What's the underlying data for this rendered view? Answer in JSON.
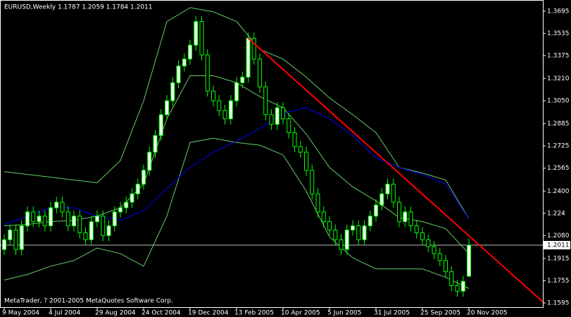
{
  "chart_data": {
    "type": "candlestick",
    "title": "EURUSD,Weekly  1.1787 1.2059 1.1784 1.2011",
    "footer": "MetaTrader, ? 2001-2005 MetaQuotes Software Corp.",
    "categories": [
      "9 May 2004",
      null,
      null,
      null,
      null,
      null,
      null,
      null,
      "4 Jul 2004",
      null,
      null,
      null,
      null,
      null,
      null,
      null,
      "29 Aug 2004",
      null,
      null,
      null,
      null,
      null,
      null,
      null,
      "24 Oct 2004",
      null,
      null,
      null,
      null,
      null,
      null,
      null,
      "19 Dec 2004",
      null,
      null,
      null,
      null,
      null,
      null,
      null,
      "13 Feb 2005",
      null,
      null,
      null,
      null,
      null,
      null,
      null,
      "10 Apr 2005",
      null,
      null,
      null,
      null,
      null,
      null,
      null,
      "5 Jun 2005",
      null,
      null,
      null,
      null,
      null,
      null,
      null,
      "31 Jul 2005",
      null,
      null,
      null,
      null,
      null,
      null,
      null,
      "25 Sep 2005",
      null,
      null,
      null,
      null,
      null,
      null,
      null,
      "20 Nov 2005"
    ],
    "open": [
      1.198,
      1.205,
      1.212,
      1.198,
      1.215,
      1.225,
      1.218,
      1.222,
      1.215,
      1.228,
      1.232,
      1.225,
      1.215,
      1.222,
      1.21,
      1.205,
      1.218,
      1.222,
      1.208,
      1.215,
      1.225,
      1.228,
      1.232,
      1.238,
      1.245,
      1.255,
      1.268,
      1.28,
      1.295,
      1.305,
      1.318,
      1.33,
      1.335,
      1.345,
      1.362,
      1.338,
      1.312,
      1.305,
      1.298,
      1.292,
      1.305,
      1.318,
      1.322,
      1.35,
      1.335,
      1.315,
      1.295,
      1.288,
      1.3,
      1.292,
      1.282,
      1.272,
      1.268,
      1.255,
      1.238,
      1.225,
      1.218,
      1.212,
      1.205,
      1.198,
      1.212,
      1.215,
      1.205,
      1.215,
      1.222,
      1.23,
      1.238,
      1.245,
      1.232,
      1.218,
      1.225,
      1.215,
      1.21,
      1.205,
      1.2,
      1.195,
      1.19,
      1.182,
      1.172,
      1.168,
      1.1787
    ],
    "high": [
      1.209,
      1.216,
      1.216,
      1.219,
      1.229,
      1.229,
      1.226,
      1.226,
      1.232,
      1.236,
      1.236,
      1.229,
      1.226,
      1.226,
      1.214,
      1.222,
      1.226,
      1.226,
      1.219,
      1.229,
      1.232,
      1.236,
      1.242,
      1.249,
      1.259,
      1.272,
      1.284,
      1.299,
      1.309,
      1.322,
      1.334,
      1.339,
      1.349,
      1.366,
      1.366,
      1.342,
      1.316,
      1.309,
      1.302,
      1.309,
      1.322,
      1.326,
      1.354,
      1.354,
      1.339,
      1.319,
      1.299,
      1.304,
      1.304,
      1.296,
      1.286,
      1.276,
      1.272,
      1.259,
      1.242,
      1.229,
      1.222,
      1.216,
      1.209,
      1.216,
      1.219,
      1.219,
      1.219,
      1.226,
      1.234,
      1.242,
      1.249,
      1.249,
      1.236,
      1.229,
      1.229,
      1.219,
      1.214,
      1.209,
      1.204,
      1.199,
      1.194,
      1.186,
      1.176,
      1.179,
      1.2059
    ],
    "low": [
      1.194,
      1.201,
      1.194,
      1.194,
      1.211,
      1.214,
      1.214,
      1.211,
      1.211,
      1.224,
      1.221,
      1.211,
      1.211,
      1.206,
      1.201,
      1.201,
      1.214,
      1.204,
      1.204,
      1.211,
      1.221,
      1.224,
      1.228,
      1.234,
      1.241,
      1.251,
      1.264,
      1.276,
      1.291,
      1.301,
      1.314,
      1.326,
      1.331,
      1.341,
      1.334,
      1.308,
      1.301,
      1.294,
      1.288,
      1.288,
      1.301,
      1.314,
      1.318,
      1.331,
      1.311,
      1.291,
      1.284,
      1.284,
      1.288,
      1.278,
      1.268,
      1.264,
      1.251,
      1.234,
      1.221,
      1.214,
      1.208,
      1.201,
      1.194,
      1.194,
      1.208,
      1.201,
      1.201,
      1.211,
      1.218,
      1.226,
      1.234,
      1.228,
      1.214,
      1.214,
      1.211,
      1.206,
      1.201,
      1.196,
      1.191,
      1.186,
      1.178,
      1.168,
      1.164,
      1.164,
      1.1784
    ],
    "close": [
      1.205,
      1.212,
      1.198,
      1.215,
      1.225,
      1.218,
      1.222,
      1.215,
      1.228,
      1.232,
      1.225,
      1.215,
      1.222,
      1.21,
      1.205,
      1.218,
      1.222,
      1.208,
      1.215,
      1.225,
      1.228,
      1.232,
      1.238,
      1.245,
      1.255,
      1.268,
      1.28,
      1.295,
      1.305,
      1.318,
      1.33,
      1.335,
      1.345,
      1.362,
      1.338,
      1.312,
      1.305,
      1.298,
      1.292,
      1.305,
      1.318,
      1.322,
      1.35,
      1.335,
      1.315,
      1.295,
      1.288,
      1.3,
      1.292,
      1.282,
      1.272,
      1.268,
      1.255,
      1.238,
      1.225,
      1.218,
      1.212,
      1.205,
      1.198,
      1.212,
      1.215,
      1.205,
      1.215,
      1.222,
      1.23,
      1.238,
      1.245,
      1.232,
      1.218,
      1.225,
      1.215,
      1.21,
      1.205,
      1.2,
      1.195,
      1.19,
      1.182,
      1.172,
      1.168,
      1.175,
      1.2011
    ],
    "up_color": "#e8ffe8",
    "down_color": "#000000",
    "wick_color": "#00ff00",
    "indicator_x": [
      0,
      4,
      8,
      12,
      16,
      20,
      24,
      28,
      32,
      36,
      40,
      44,
      48,
      52,
      56,
      60,
      64,
      68,
      72,
      76,
      80
    ],
    "indicators": [
      {
        "color": "#66cc66",
        "values": [
          1.254,
          1.252,
          1.25,
          1.248,
          1.246,
          1.262,
          1.305,
          1.362,
          1.372,
          1.369,
          1.362,
          1.342,
          1.335,
          1.322,
          1.307,
          1.295,
          1.282,
          1.257,
          1.253,
          1.248,
          1.22
        ]
      },
      {
        "color": "#66cc66",
        "values": [
          1.215,
          1.216,
          1.218,
          1.219,
          1.222,
          1.228,
          1.245,
          1.292,
          1.323,
          1.323,
          1.318,
          1.308,
          1.3,
          1.281,
          1.257,
          1.243,
          1.233,
          1.221,
          1.218,
          1.213,
          1.195
        ]
      },
      {
        "color": "#66cc66",
        "values": [
          1.176,
          1.18,
          1.186,
          1.19,
          1.199,
          1.195,
          1.186,
          1.222,
          1.275,
          1.278,
          1.275,
          1.273,
          1.266,
          1.24,
          1.207,
          1.192,
          1.184,
          1.184,
          1.184,
          1.178,
          1.17
        ]
      },
      {
        "color": "#0000ff",
        "values": [
          1.216,
          1.222,
          1.228,
          1.228,
          1.222,
          1.219,
          1.226,
          1.242,
          1.257,
          1.268,
          1.276,
          1.285,
          1.296,
          1.3,
          1.292,
          1.28,
          1.264,
          1.257,
          1.252,
          1.245,
          1.22
        ]
      }
    ],
    "trendline": {
      "color": "#ff0000",
      "x": [
        42,
        93.6
      ],
      "values": [
        1.35,
        1.157
      ]
    },
    "current_price": 1.2011,
    "ylim": [
      1.1565,
      1.3775
    ],
    "yticks": [
      1.3695,
      1.3535,
      1.3375,
      {
        "value": 1.321,
        "label": "1.3210"
      },
      {
        "value": 1.305,
        "label": "1.3050"
      },
      1.2885,
      1.2725,
      1.2565,
      {
        "value": 1.24,
        "label": "1.2400"
      },
      1.224,
      {
        "value": 1.208,
        "label": "1.2080"
      },
      1.1915,
      1.1755,
      1.1595
    ]
  }
}
